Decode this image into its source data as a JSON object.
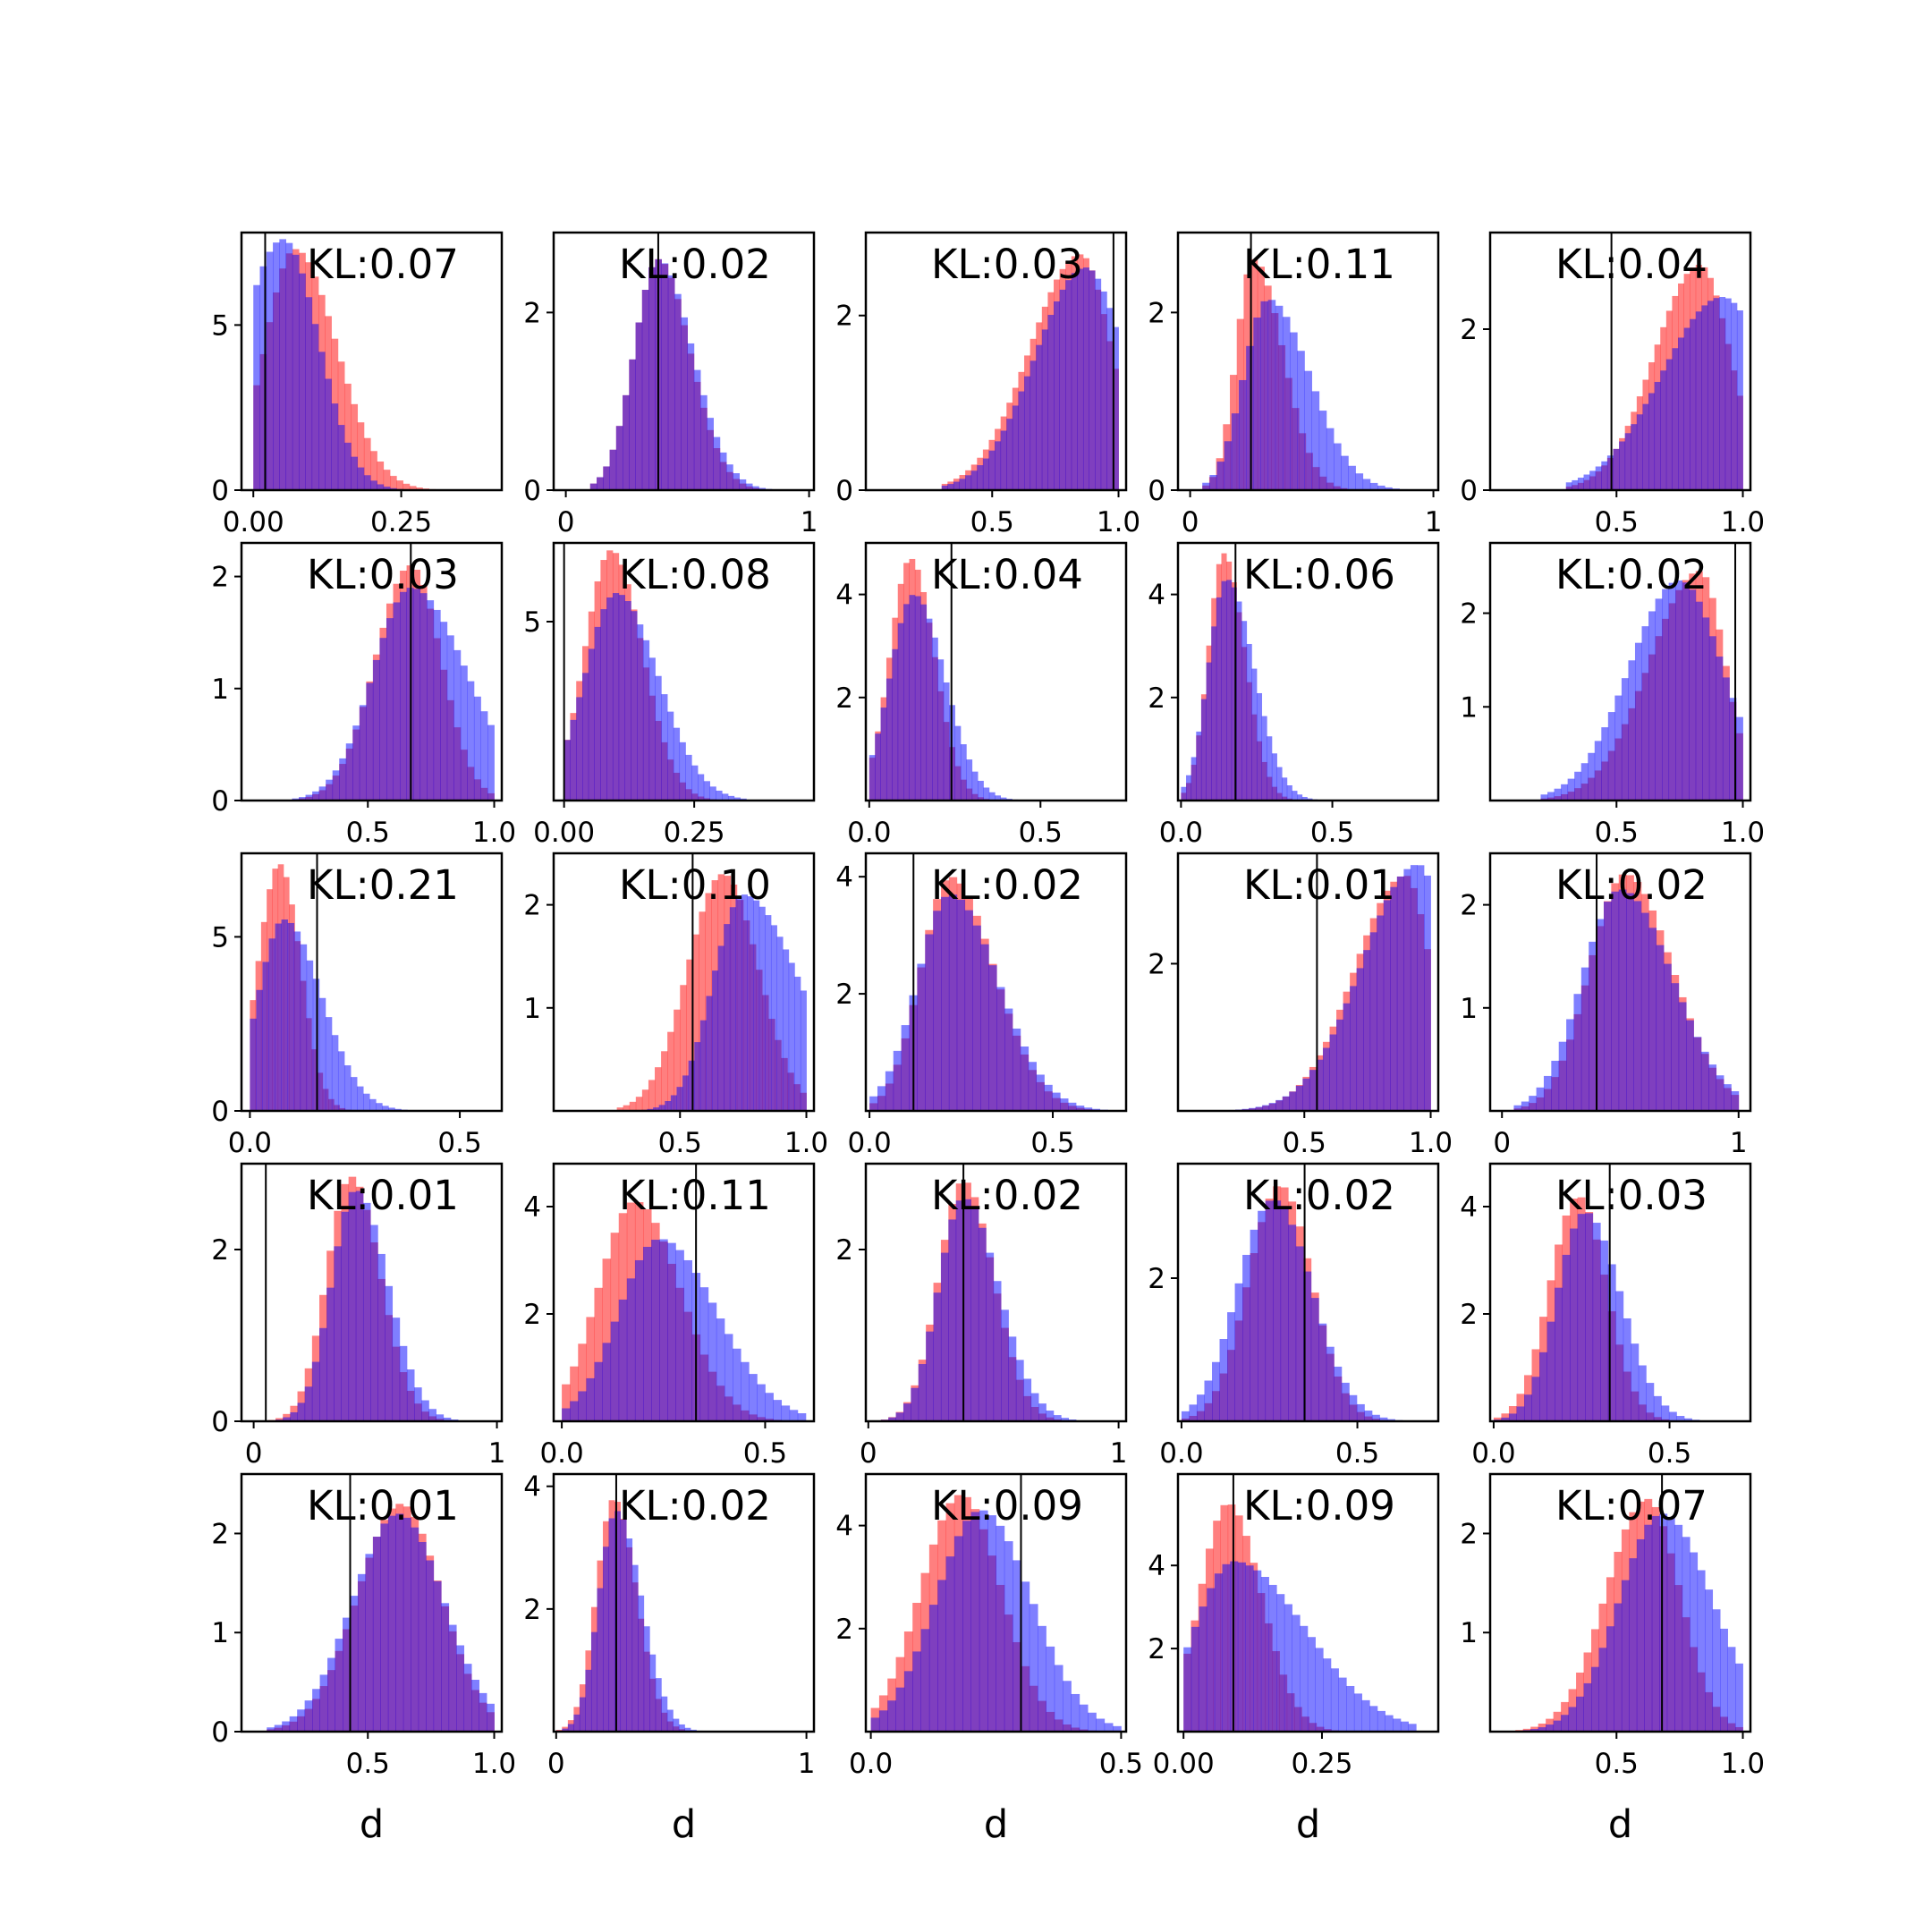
{
  "chart_data": {
    "type": "histogram-grid",
    "rows": 5,
    "cols": 5,
    "series": [
      {
        "name": "",
        "color": "#ff0000",
        "opacity": 0.5
      },
      {
        "name": "",
        "color": "#0000ff",
        "opacity": 0.5
      }
    ],
    "xlabel": "d",
    "panels": [
      {
        "kl": "KL:0.07",
        "xlim": [
          -0.02,
          0.42
        ],
        "ylim": [
          0,
          7.8
        ],
        "xticks": [
          0.0,
          0.25
        ],
        "xtick_labels": [
          "0.00",
          "0.25"
        ],
        "yticks": [
          0,
          5
        ],
        "ytick_labels": [
          "0",
          "5"
        ],
        "vline": 0.02,
        "red": {
          "lo": 0.0,
          "hi": 0.33,
          "mode": 0.07,
          "sl": 0.05,
          "sr": 0.07,
          "peak": 7.3
        },
        "blue": {
          "lo": 0.0,
          "hi": 0.33,
          "mode": 0.05,
          "sl": 0.07,
          "sr": 0.06,
          "peak": 7.6
        }
      },
      {
        "kl": "KL:0.02",
        "xlim": [
          -0.05,
          1.02
        ],
        "ylim": [
          0,
          2.9
        ],
        "xticks": [
          0,
          1
        ],
        "xtick_labels": [
          "0",
          "1"
        ],
        "yticks": [
          0,
          2
        ],
        "ytick_labels": [
          "0",
          "2"
        ],
        "vline": 0.38,
        "red": {
          "lo": 0.1,
          "hi": 0.9,
          "mode": 0.38,
          "sl": 0.1,
          "sr": 0.13,
          "peak": 2.6
        },
        "blue": {
          "lo": 0.1,
          "hi": 0.9,
          "mode": 0.38,
          "sl": 0.1,
          "sr": 0.14,
          "peak": 2.6
        }
      },
      {
        "kl": "KL:0.03",
        "xlim": [
          0.0,
          1.03
        ],
        "ylim": [
          0,
          2.95
        ],
        "xticks": [
          0.5,
          1.0
        ],
        "xtick_labels": [
          "0.5",
          "1.0"
        ],
        "yticks": [
          0,
          2
        ],
        "ytick_labels": [
          "0",
          "2"
        ],
        "vline": 0.98,
        "red": {
          "lo": 0.3,
          "hi": 1.0,
          "mode": 0.85,
          "sl": 0.2,
          "sr": 0.12,
          "peak": 2.7
        },
        "blue": {
          "lo": 0.3,
          "hi": 1.0,
          "mode": 0.87,
          "sl": 0.2,
          "sr": 0.15,
          "peak": 2.55
        }
      },
      {
        "kl": "KL:0.11",
        "xlim": [
          -0.05,
          1.02
        ],
        "ylim": [
          0,
          2.9
        ],
        "xticks": [
          0,
          1
        ],
        "xtick_labels": [
          "0",
          "1"
        ],
        "yticks": [
          0,
          2
        ],
        "ytick_labels": [
          "0",
          "2"
        ],
        "vline": 0.25,
        "red": {
          "lo": 0.05,
          "hi": 0.9,
          "mode": 0.26,
          "sl": 0.07,
          "sr": 0.12,
          "peak": 2.6
        },
        "blue": {
          "lo": 0.05,
          "hi": 0.95,
          "mode": 0.32,
          "sl": 0.1,
          "sr": 0.17,
          "peak": 2.15
        }
      },
      {
        "kl": "KL:0.04",
        "xlim": [
          0.0,
          1.03
        ],
        "ylim": [
          0,
          3.2
        ],
        "xticks": [
          0.5,
          1.0
        ],
        "xtick_labels": [
          "0.5",
          "1.0"
        ],
        "yticks": [
          0,
          2
        ],
        "ytick_labels": [
          "0",
          "2"
        ],
        "vline": 0.48,
        "red": {
          "lo": 0.3,
          "hi": 1.0,
          "mode": 0.83,
          "sl": 0.18,
          "sr": 0.12,
          "peak": 2.8
        },
        "blue": {
          "lo": 0.3,
          "hi": 1.0,
          "mode": 0.92,
          "sl": 0.24,
          "sr": 0.18,
          "peak": 2.4
        }
      },
      {
        "kl": "KL:0.03",
        "xlim": [
          0.0,
          1.03
        ],
        "ylim": [
          0,
          2.3
        ],
        "xticks": [
          0.5,
          1.0
        ],
        "xtick_labels": [
          "0.5",
          "1.0"
        ],
        "yticks": [
          0,
          1,
          2
        ],
        "ytick_labels": [
          "0",
          "1",
          "2"
        ],
        "vline": 0.67,
        "red": {
          "lo": 0.2,
          "hi": 1.0,
          "mode": 0.67,
          "sl": 0.14,
          "sr": 0.12,
          "peak": 2.1
        },
        "blue": {
          "lo": 0.2,
          "hi": 1.0,
          "mode": 0.67,
          "sl": 0.15,
          "sr": 0.22,
          "peak": 1.9
        }
      },
      {
        "kl": "KL:0.08",
        "xlim": [
          -0.02,
          0.48
        ],
        "ylim": [
          0,
          7.2
        ],
        "xticks": [
          0.0,
          0.25
        ],
        "xtick_labels": [
          "0.00",
          "0.25"
        ],
        "yticks": [
          5
        ],
        "ytick_labels": [
          "5"
        ],
        "vline": 0.0,
        "red": {
          "lo": 0.0,
          "hi": 0.35,
          "mode": 0.09,
          "sl": 0.05,
          "sr": 0.06,
          "peak": 7.0
        },
        "blue": {
          "lo": 0.0,
          "hi": 0.35,
          "mode": 0.1,
          "sl": 0.06,
          "sr": 0.08,
          "peak": 5.8
        }
      },
      {
        "kl": "KL:0.04",
        "xlim": [
          -0.01,
          0.75
        ],
        "ylim": [
          0,
          5.0
        ],
        "xticks": [
          0.0,
          0.5
        ],
        "xtick_labels": [
          "0.0",
          "0.5"
        ],
        "yticks": [
          2,
          4
        ],
        "ytick_labels": [
          "2",
          "4"
        ],
        "vline": 0.24,
        "red": {
          "lo": 0.0,
          "hi": 0.5,
          "mode": 0.12,
          "sl": 0.06,
          "sr": 0.07,
          "peak": 4.7
        },
        "blue": {
          "lo": 0.0,
          "hi": 0.5,
          "mode": 0.13,
          "sl": 0.07,
          "sr": 0.09,
          "peak": 4.0
        }
      },
      {
        "kl": "KL:0.06",
        "xlim": [
          -0.01,
          0.85
        ],
        "ylim": [
          0,
          5.0
        ],
        "xticks": [
          0.0,
          0.5
        ],
        "xtick_labels": [
          "0.0",
          "0.5"
        ],
        "yticks": [
          2,
          4
        ],
        "ytick_labels": [
          "2",
          "4"
        ],
        "vline": 0.18,
        "red": {
          "lo": 0.0,
          "hi": 0.5,
          "mode": 0.14,
          "sl": 0.05,
          "sr": 0.07,
          "peak": 4.8
        },
        "blue": {
          "lo": 0.0,
          "hi": 0.5,
          "mode": 0.15,
          "sl": 0.06,
          "sr": 0.09,
          "peak": 4.3
        }
      },
      {
        "kl": "KL:0.02",
        "xlim": [
          0.0,
          1.03
        ],
        "ylim": [
          0,
          2.75
        ],
        "xticks": [
          0.5,
          1.0
        ],
        "xtick_labels": [
          "0.5",
          "1.0"
        ],
        "yticks": [
          1,
          2
        ],
        "ytick_labels": [
          "1",
          "2"
        ],
        "vline": 0.97,
        "red": {
          "lo": 0.2,
          "hi": 1.0,
          "mode": 0.83,
          "sl": 0.2,
          "sr": 0.1,
          "peak": 2.45
        },
        "blue": {
          "lo": 0.2,
          "hi": 1.0,
          "mode": 0.75,
          "sl": 0.2,
          "sr": 0.17,
          "peak": 2.35
        }
      },
      {
        "kl": "KL:0.21",
        "xlim": [
          -0.02,
          0.6
        ],
        "ylim": [
          0,
          7.4
        ],
        "xticks": [
          0.0,
          0.5
        ],
        "xtick_labels": [
          "0.0",
          "0.5"
        ],
        "yticks": [
          0,
          5
        ],
        "ytick_labels": [
          "0",
          "5"
        ],
        "vline": 0.16,
        "red": {
          "lo": 0.0,
          "hi": 0.4,
          "mode": 0.07,
          "sl": 0.05,
          "sr": 0.05,
          "peak": 7.1
        },
        "blue": {
          "lo": 0.0,
          "hi": 0.45,
          "mode": 0.08,
          "sl": 0.06,
          "sr": 0.09,
          "peak": 5.5
        }
      },
      {
        "kl": "KL:0.10",
        "xlim": [
          0.0,
          1.03
        ],
        "ylim": [
          0,
          2.5
        ],
        "xticks": [
          0.5,
          1.0
        ],
        "xtick_labels": [
          "0.5",
          "1.0"
        ],
        "yticks": [
          1,
          2
        ],
        "ytick_labels": [
          "1",
          "2"
        ],
        "vline": 0.55,
        "red": {
          "lo": 0.25,
          "hi": 1.0,
          "mode": 0.67,
          "sl": 0.14,
          "sr": 0.14,
          "peak": 2.3
        },
        "blue": {
          "lo": 0.3,
          "hi": 1.0,
          "mode": 0.75,
          "sl": 0.12,
          "sr": 0.22,
          "peak": 2.1
        }
      },
      {
        "kl": "KL:0.02",
        "xlim": [
          -0.01,
          0.7
        ],
        "ylim": [
          0,
          4.4
        ],
        "xticks": [
          0.0,
          0.5
        ],
        "xtick_labels": [
          "0.0",
          "0.5"
        ],
        "yticks": [
          2,
          4
        ],
        "ytick_labels": [
          "2",
          "4"
        ],
        "vline": 0.12,
        "red": {
          "lo": 0.0,
          "hi": 0.65,
          "mode": 0.22,
          "sl": 0.08,
          "sr": 0.12,
          "peak": 4.0
        },
        "blue": {
          "lo": 0.0,
          "hi": 0.65,
          "mode": 0.22,
          "sl": 0.09,
          "sr": 0.13,
          "peak": 3.7
        }
      },
      {
        "kl": "KL:0.01",
        "xlim": [
          0.0,
          1.03
        ],
        "ylim": [
          0,
          3.5
        ],
        "xticks": [
          0.5,
          1.0
        ],
        "xtick_labels": [
          "0.5",
          "1.0"
        ],
        "yticks": [
          2
        ],
        "ytick_labels": [
          "2"
        ],
        "vline": 0.55,
        "red": {
          "lo": 0.2,
          "hi": 1.0,
          "mode": 0.9,
          "sl": 0.2,
          "sr": 0.1,
          "peak": 3.2
        },
        "blue": {
          "lo": 0.2,
          "hi": 1.0,
          "mode": 0.95,
          "sl": 0.22,
          "sr": 0.12,
          "peak": 3.35
        }
      },
      {
        "kl": "KL:0.02",
        "xlim": [
          -0.05,
          1.05
        ],
        "ylim": [
          0,
          2.5
        ],
        "xticks": [
          0,
          1
        ],
        "xtick_labels": [
          "0",
          "1"
        ],
        "yticks": [
          1,
          2
        ],
        "ytick_labels": [
          "1",
          "2"
        ],
        "vline": 0.4,
        "red": {
          "lo": 0.05,
          "hi": 1.0,
          "mode": 0.52,
          "sl": 0.15,
          "sr": 0.2,
          "peak": 2.3
        },
        "blue": {
          "lo": 0.05,
          "hi": 1.0,
          "mode": 0.5,
          "sl": 0.16,
          "sr": 0.22,
          "peak": 2.15
        }
      },
      {
        "kl": "KL:0.01",
        "xlim": [
          -0.05,
          1.02
        ],
        "ylim": [
          0,
          3.0
        ],
        "xticks": [
          0,
          1
        ],
        "xtick_labels": [
          "0",
          "1"
        ],
        "yticks": [
          0,
          2
        ],
        "ytick_labels": [
          "0",
          "2"
        ],
        "vline": 0.05,
        "red": {
          "lo": 0.0,
          "hi": 0.9,
          "mode": 0.4,
          "sl": 0.1,
          "sr": 0.12,
          "peak": 2.85
        },
        "blue": {
          "lo": 0.0,
          "hi": 0.9,
          "mode": 0.42,
          "sl": 0.1,
          "sr": 0.13,
          "peak": 2.7
        }
      },
      {
        "kl": "KL:0.11",
        "xlim": [
          -0.02,
          0.62
        ],
        "ylim": [
          0,
          4.8
        ],
        "xticks": [
          0.0,
          0.5
        ],
        "xtick_labels": [
          "0.0",
          "0.5"
        ],
        "yticks": [
          2,
          4
        ],
        "ytick_labels": [
          "2",
          "4"
        ],
        "vline": 0.33,
        "red": {
          "lo": 0.0,
          "hi": 0.6,
          "mode": 0.18,
          "sl": 0.09,
          "sr": 0.11,
          "peak": 4.1
        },
        "blue": {
          "lo": 0.0,
          "hi": 0.6,
          "mode": 0.24,
          "sl": 0.1,
          "sr": 0.14,
          "peak": 3.4
        }
      },
      {
        "kl": "KL:0.02",
        "xlim": [
          -0.01,
          1.03
        ],
        "ylim": [
          0,
          3.0
        ],
        "xticks": [
          0,
          1
        ],
        "xtick_labels": [
          "0",
          "1"
        ],
        "yticks": [
          2
        ],
        "ytick_labels": [
          "2"
        ],
        "vline": 0.38,
        "red": {
          "lo": 0.05,
          "hi": 0.95,
          "mode": 0.38,
          "sl": 0.1,
          "sr": 0.12,
          "peak": 2.8
        },
        "blue": {
          "lo": 0.05,
          "hi": 0.95,
          "mode": 0.38,
          "sl": 0.1,
          "sr": 0.14,
          "peak": 2.6
        }
      },
      {
        "kl": "KL:0.02",
        "xlim": [
          -0.01,
          0.73
        ],
        "ylim": [
          0,
          3.6
        ],
        "xticks": [
          0.0,
          0.5
        ],
        "xtick_labels": [
          "0.0",
          "0.5"
        ],
        "yticks": [
          2
        ],
        "ytick_labels": [
          "2"
        ],
        "vline": 0.35,
        "red": {
          "lo": 0.0,
          "hi": 0.65,
          "mode": 0.28,
          "sl": 0.09,
          "sr": 0.09,
          "peak": 3.3
        },
        "blue": {
          "lo": 0.0,
          "hi": 0.65,
          "mode": 0.26,
          "sl": 0.1,
          "sr": 0.11,
          "peak": 3.1
        }
      },
      {
        "kl": "KL:0.03",
        "xlim": [
          -0.01,
          0.73
        ],
        "ylim": [
          0,
          4.8
        ],
        "xticks": [
          0.0,
          0.5
        ],
        "xtick_labels": [
          "0.0",
          "0.5"
        ],
        "yticks": [
          2,
          4
        ],
        "ytick_labels": [
          "2",
          "4"
        ],
        "vline": 0.33,
        "red": {
          "lo": 0.0,
          "hi": 0.65,
          "mode": 0.24,
          "sl": 0.08,
          "sr": 0.08,
          "peak": 4.2
        },
        "blue": {
          "lo": 0.0,
          "hi": 0.65,
          "mode": 0.26,
          "sl": 0.08,
          "sr": 0.1,
          "peak": 3.9
        }
      },
      {
        "kl": "KL:0.01",
        "xlim": [
          0.0,
          1.03
        ],
        "ylim": [
          0,
          2.6
        ],
        "xticks": [
          0.5,
          1.0
        ],
        "xtick_labels": [
          "0.5",
          "1.0"
        ],
        "yticks": [
          0,
          1,
          2
        ],
        "ytick_labels": [
          "0",
          "1",
          "2"
        ],
        "vline": 0.43,
        "red": {
          "lo": 0.1,
          "hi": 1.0,
          "mode": 0.63,
          "sl": 0.17,
          "sr": 0.16,
          "peak": 2.3
        },
        "blue": {
          "lo": 0.1,
          "hi": 1.0,
          "mode": 0.62,
          "sl": 0.18,
          "sr": 0.18,
          "peak": 2.2
        }
      },
      {
        "kl": "KL:0.02",
        "xlim": [
          -0.01,
          1.03
        ],
        "ylim": [
          0,
          4.2
        ],
        "xticks": [
          0,
          1
        ],
        "xtick_labels": [
          "0",
          "1"
        ],
        "yticks": [
          2,
          4
        ],
        "ytick_labels": [
          "2",
          "4"
        ],
        "vline": 0.24,
        "red": {
          "lo": 0.0,
          "hi": 0.7,
          "mode": 0.23,
          "sl": 0.07,
          "sr": 0.09,
          "peak": 3.8
        },
        "blue": {
          "lo": 0.0,
          "hi": 0.7,
          "mode": 0.24,
          "sl": 0.07,
          "sr": 0.1,
          "peak": 3.6
        }
      },
      {
        "kl": "KL:0.09",
        "xlim": [
          -0.01,
          0.51
        ],
        "ylim": [
          0,
          5.0
        ],
        "xticks": [
          0.0,
          0.5
        ],
        "xtick_labels": [
          "0.0",
          "0.5"
        ],
        "yticks": [
          2,
          4
        ],
        "ytick_labels": [
          "2",
          "4"
        ],
        "vline": 0.3,
        "red": {
          "lo": 0.0,
          "hi": 0.5,
          "mode": 0.18,
          "sl": 0.08,
          "sr": 0.08,
          "peak": 4.6
        },
        "blue": {
          "lo": 0.0,
          "hi": 0.5,
          "mode": 0.22,
          "sl": 0.09,
          "sr": 0.1,
          "peak": 4.3
        }
      },
      {
        "kl": "KL:0.09",
        "xlim": [
          -0.01,
          0.46
        ],
        "ylim": [
          0,
          6.2
        ],
        "xticks": [
          0.0,
          0.25
        ],
        "xtick_labels": [
          "0.00",
          "0.25"
        ],
        "yticks": [
          2,
          4
        ],
        "ytick_labels": [
          "2",
          "4"
        ],
        "vline": 0.09,
        "red": {
          "lo": 0.0,
          "hi": 0.4,
          "mode": 0.08,
          "sl": 0.05,
          "sr": 0.06,
          "peak": 5.5
        },
        "blue": {
          "lo": 0.0,
          "hi": 0.42,
          "mode": 0.09,
          "sl": 0.07,
          "sr": 0.13,
          "peak": 4.1
        }
      },
      {
        "kl": "KL:0.07",
        "xlim": [
          0.0,
          1.03
        ],
        "ylim": [
          0,
          2.6
        ],
        "xticks": [
          0.5,
          1.0
        ],
        "xtick_labels": [
          "0.5",
          "1.0"
        ],
        "yticks": [
          1,
          2
        ],
        "ytick_labels": [
          "1",
          "2"
        ],
        "vline": 0.68,
        "red": {
          "lo": 0.1,
          "hi": 1.0,
          "mode": 0.62,
          "sl": 0.16,
          "sr": 0.13,
          "peak": 2.35
        },
        "blue": {
          "lo": 0.1,
          "hi": 1.0,
          "mode": 0.68,
          "sl": 0.17,
          "sr": 0.2,
          "peak": 2.2
        }
      }
    ]
  }
}
